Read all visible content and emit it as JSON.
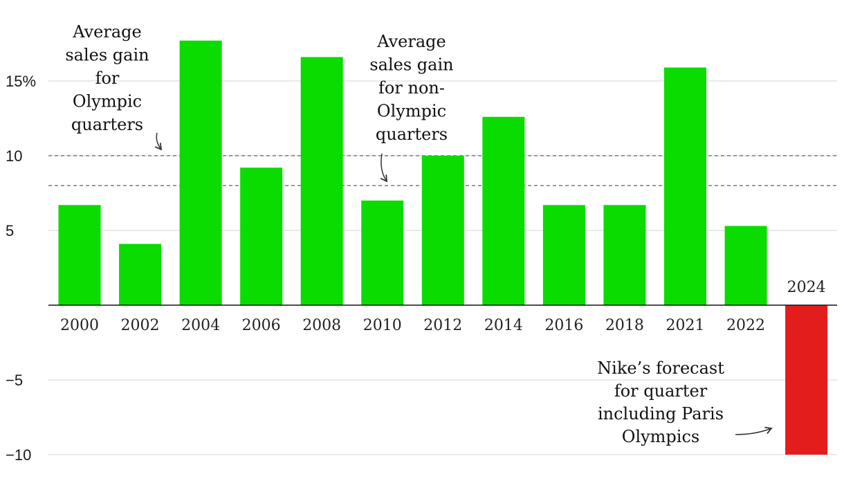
{
  "chart_data": {
    "type": "bar",
    "categories": [
      "2000",
      "2002",
      "2004",
      "2006",
      "2008",
      "2010",
      "2012",
      "2014",
      "2016",
      "2018",
      "2021",
      "2022",
      "2024"
    ],
    "values": [
      6.7,
      4.1,
      17.7,
      9.2,
      16.6,
      7.0,
      10.0,
      12.6,
      6.7,
      6.7,
      15.9,
      5.3,
      -10.0
    ],
    "ylim": [
      -10.5,
      18.5
    ],
    "yticks": [
      -10,
      -5,
      5,
      10,
      15
    ],
    "ytick_labels": [
      "−10",
      "−5",
      "5",
      "10",
      "15%"
    ],
    "reference_lines": [
      {
        "value": 10.0,
        "label": "Average sales gain for Olympic quarters"
      },
      {
        "value": 8.0,
        "label": "Average sales gain for non-Olympic quarters"
      }
    ],
    "colors": {
      "actual": "#0adc00",
      "forecast": "#e31c1c"
    },
    "forecast_category": "2024",
    "annotations": {
      "olympic": [
        "Average",
        "sales gain",
        "for",
        "Olympic",
        "quarters"
      ],
      "non_olympic": [
        "Average",
        "sales gain",
        "for non-",
        "Olympic",
        "quarters"
      ],
      "forecast": [
        "Nike’s forecast",
        "for quarter",
        "including Paris",
        "Olympics"
      ]
    },
    "grid": true,
    "title": "",
    "xlabel": "",
    "ylabel": ""
  }
}
